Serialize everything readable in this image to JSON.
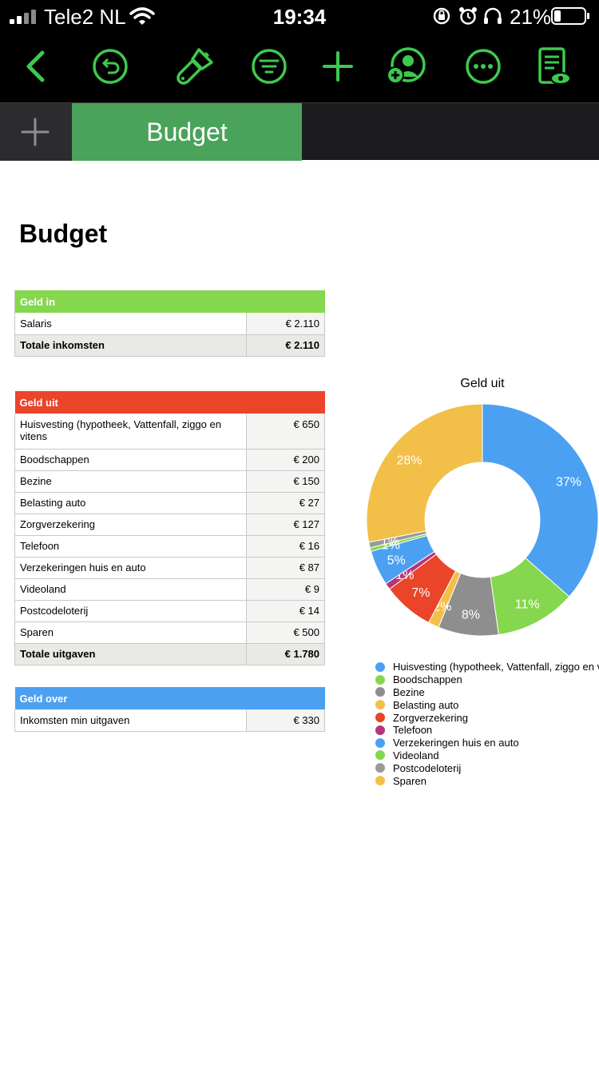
{
  "status_bar": {
    "carrier": "Tele2 NL",
    "time": "19:34",
    "battery": "21%"
  },
  "toolbar": {
    "accent": "#3ec94e",
    "icons": [
      "back-icon",
      "undo-icon",
      "format-brush-icon",
      "filter-icon",
      "add-icon",
      "collaborate-icon",
      "more-icon",
      "reader-view-icon"
    ]
  },
  "tabs": {
    "active": "Budget"
  },
  "sheet": {
    "title": "Budget",
    "income": {
      "header": "Geld in",
      "rows": [
        {
          "label": "Salaris",
          "amount": "€ 2.110"
        }
      ],
      "total": {
        "label": "Totale inkomsten",
        "amount": "€ 2.110"
      }
    },
    "expenses": {
      "header": "Geld uit",
      "rows": [
        {
          "label": "Huisvesting (hypotheek, Vattenfall, ziggo en vitens",
          "amount": "€ 650"
        },
        {
          "label": "Boodschappen",
          "amount": "€ 200"
        },
        {
          "label": "Bezine",
          "amount": "€ 150"
        },
        {
          "label": "Belasting auto",
          "amount": "€ 27"
        },
        {
          "label": "Zorgverzekering",
          "amount": "€ 127"
        },
        {
          "label": "Telefoon",
          "amount": "€ 16"
        },
        {
          "label": "Verzekeringen huis en auto",
          "amount": "€ 87"
        },
        {
          "label": "Videoland",
          "amount": "€ 9"
        },
        {
          "label": "Postcodeloterij",
          "amount": "€ 14"
        },
        {
          "label": "Sparen",
          "amount": "€ 500"
        }
      ],
      "total": {
        "label": "Totale uitgaven",
        "amount": "€ 1.780"
      }
    },
    "leftover": {
      "header": "Geld over",
      "rows": [
        {
          "label": "Inkomsten min uitgaven",
          "amount": "€ 330"
        }
      ]
    }
  },
  "chart_data": {
    "type": "pie",
    "title": "Geld uit",
    "categories": [
      "Huisvesting (hypotheek, Vattenfall, ziggo en vitens",
      "Boodschappen",
      "Bezine",
      "Belasting auto",
      "Zorgverzekering",
      "Telefoon",
      "Verzekeringen huis en auto",
      "Videoland",
      "Postcodeloterij",
      "Sparen"
    ],
    "values": [
      650,
      200,
      150,
      27,
      127,
      16,
      87,
      9,
      14,
      500
    ],
    "data_labels": [
      "37%",
      "11%",
      "8%",
      "2%",
      "7%",
      "1%",
      "5%",
      "1%",
      "1%",
      "28%"
    ],
    "colors": [
      "#4ca0f1",
      "#85d74e",
      "#8e8e8e",
      "#f2bf48",
      "#ea4429",
      "#b8347a",
      "#4ca0f1",
      "#85d74e",
      "#9a9a9a",
      "#f2bf48"
    ],
    "legend_position": "bottom"
  }
}
